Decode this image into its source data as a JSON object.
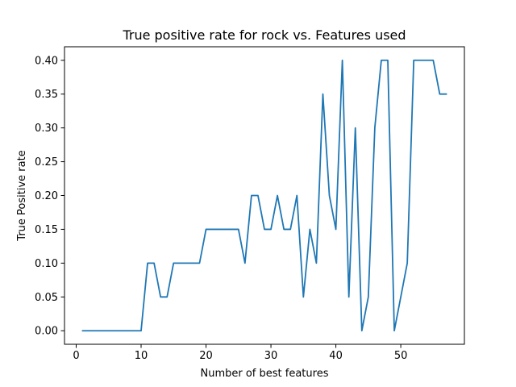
{
  "chart_data": {
    "type": "line",
    "title": "True positive rate for rock vs. Features used",
    "xlabel": "Number of best features",
    "ylabel": "True Positive rate",
    "xlim": [
      -1.8,
      59.8
    ],
    "ylim": [
      -0.02,
      0.42
    ],
    "xticks": [
      0,
      10,
      20,
      30,
      40,
      50
    ],
    "yticks": [
      0.0,
      0.05,
      0.1,
      0.15,
      0.2,
      0.25,
      0.3,
      0.35,
      0.4
    ],
    "ytick_labels": [
      "0.00",
      "0.05",
      "0.10",
      "0.15",
      "0.20",
      "0.25",
      "0.30",
      "0.35",
      "0.40"
    ],
    "grid": false,
    "series": [
      {
        "color": "#1f77b4",
        "x": [
          1,
          2,
          3,
          4,
          5,
          6,
          7,
          8,
          9,
          10,
          11,
          12,
          13,
          14,
          15,
          16,
          17,
          18,
          19,
          20,
          21,
          22,
          23,
          24,
          25,
          26,
          27,
          28,
          29,
          30,
          31,
          32,
          33,
          34,
          35,
          36,
          37,
          38,
          39,
          40,
          41,
          42,
          43,
          44,
          45,
          46,
          47,
          48,
          49,
          50,
          51,
          52,
          53,
          54,
          55,
          56,
          57
        ],
        "values": [
          0.0,
          0.0,
          0.0,
          0.0,
          0.0,
          0.0,
          0.0,
          0.0,
          0.0,
          0.0,
          0.1,
          0.1,
          0.05,
          0.05,
          0.1,
          0.1,
          0.1,
          0.1,
          0.1,
          0.15,
          0.15,
          0.15,
          0.15,
          0.15,
          0.15,
          0.1,
          0.2,
          0.2,
          0.15,
          0.15,
          0.2,
          0.15,
          0.15,
          0.2,
          0.05,
          0.15,
          0.1,
          0.35,
          0.2,
          0.15,
          0.4,
          0.05,
          0.3,
          0.0,
          0.05,
          0.3,
          0.4,
          0.4,
          0.0,
          0.05,
          0.1,
          0.4,
          0.4,
          0.4,
          0.4,
          0.35,
          0.35
        ]
      }
    ]
  }
}
